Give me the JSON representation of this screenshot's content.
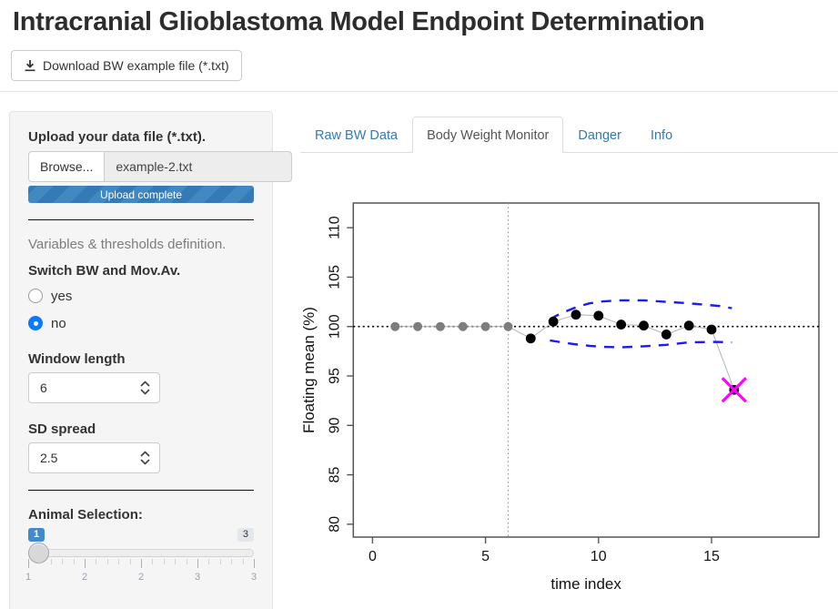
{
  "header": {
    "title": "Intracranial Glioblastoma Model Endpoint Determination",
    "download_button": "Download BW example file (*.txt)"
  },
  "sidebar": {
    "upload_label": "Upload your data file (*.txt).",
    "browse_button": "Browse...",
    "filename": "example-2.txt",
    "progress_text": "Upload complete",
    "section_note": "Variables & thresholds definition.",
    "switch_label": "Switch BW and Mov.Av.",
    "radio_options": [
      {
        "label": "yes",
        "checked": false
      },
      {
        "label": "no",
        "checked": true
      }
    ],
    "window_length": {
      "label": "Window length",
      "value": "6"
    },
    "sd_spread": {
      "label": "SD spread",
      "value": "2.5"
    },
    "animal_selection": {
      "label": "Animal Selection:",
      "value": "1",
      "max": "3",
      "grid_labels": [
        "1",
        "2",
        "2",
        "3",
        "3"
      ]
    }
  },
  "tabs": [
    {
      "label": "Raw BW Data",
      "active": false
    },
    {
      "label": "Body Weight Monitor",
      "active": true
    },
    {
      "label": "Danger",
      "active": false
    },
    {
      "label": "Info",
      "active": false
    }
  ],
  "chart_data": {
    "type": "scatter",
    "title": "",
    "xlabel": "time index",
    "ylabel": "Floating mean (%)",
    "xlim": [
      -0.85,
      19.75
    ],
    "ylim": [
      78.7,
      112.5
    ],
    "x_ticks": [
      0,
      5,
      10,
      15
    ],
    "y_ticks": [
      80,
      85,
      90,
      95,
      100,
      105,
      110
    ],
    "grid": false,
    "series": [
      {
        "name": "baseline window (gray points)",
        "x": [
          1,
          2,
          3,
          4,
          5,
          6
        ],
        "y": [
          100,
          100,
          100,
          100,
          100,
          100
        ],
        "color": "#7d7d7d"
      },
      {
        "name": "floating mean (black points)",
        "x": [
          7,
          8,
          9,
          10,
          11,
          12,
          13,
          14,
          15,
          16
        ],
        "y": [
          98.8,
          100.5,
          101.2,
          101.1,
          100.2,
          100.1,
          99.2,
          100.1,
          99.7,
          93.6
        ],
        "color": "#000000"
      }
    ],
    "reference_lines": {
      "horizontal_dotted_y": 100,
      "vertical_dotted_x": 6
    },
    "bands": {
      "upper": [
        [
          7.85,
          100.75
        ],
        [
          8.3,
          101.3
        ],
        [
          9,
          101.95
        ],
        [
          9.6,
          102.35
        ],
        [
          10.2,
          102.55
        ],
        [
          11,
          102.65
        ],
        [
          12,
          102.65
        ],
        [
          13,
          102.5
        ],
        [
          14,
          102.35
        ],
        [
          15,
          102.15
        ],
        [
          15.5,
          102.05
        ],
        [
          15.9,
          101.85
        ]
      ],
      "lower": [
        [
          7.85,
          98.6
        ],
        [
          8.5,
          98.35
        ],
        [
          9,
          98.2
        ],
        [
          9.6,
          98.05
        ],
        [
          10.2,
          97.95
        ],
        [
          11,
          97.9
        ],
        [
          12,
          98.0
        ],
        [
          13,
          98.15
        ],
        [
          14,
          98.4
        ],
        [
          15.2,
          98.45
        ],
        [
          15.9,
          98.4
        ]
      ],
      "color": "#1a1aff"
    },
    "flagged_point": {
      "x": 16,
      "y": 93.6,
      "marker": "x-cross",
      "color": "#ff00ff"
    },
    "colors": {
      "connector": "#b3b3b3",
      "axis": "#555555",
      "window_line": "#999999"
    }
  }
}
